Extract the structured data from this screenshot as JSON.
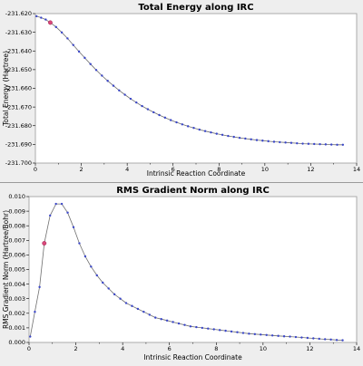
{
  "colors": {
    "plot_bg": "#ffffff",
    "line": "#6f6f6f",
    "marker": "#3a46c8",
    "current_marker": "#d9487a",
    "panel_bg": "#eeeeee"
  },
  "chart_data": [
    {
      "type": "line",
      "title": "Total Energy along IRC",
      "xlabel": "Intrinsic Reaction Coordinate",
      "ylabel": "Total Energy (Hartree)",
      "xlim": [
        0,
        14
      ],
      "ylim": [
        -231.7,
        -231.62
      ],
      "xticks": [
        "0",
        "2",
        "4",
        "6",
        "8",
        "10",
        "12",
        "14"
      ],
      "yticks": [
        "-231.620",
        "-231.630",
        "-231.640",
        "-231.650",
        "-231.660",
        "-231.670",
        "-231.680",
        "-231.690",
        "-231.700"
      ],
      "grid": false,
      "legend": "none",
      "highlight_index": 3,
      "x": [
        0.05,
        0.25,
        0.45,
        0.65,
        0.9,
        1.15,
        1.4,
        1.65,
        1.9,
        2.15,
        2.4,
        2.65,
        2.9,
        3.15,
        3.4,
        3.65,
        3.9,
        4.15,
        4.4,
        4.65,
        4.9,
        5.15,
        5.4,
        5.65,
        5.9,
        6.15,
        6.4,
        6.65,
        6.9,
        7.15,
        7.4,
        7.65,
        7.9,
        8.15,
        8.4,
        8.65,
        8.9,
        9.15,
        9.4,
        9.65,
        9.9,
        10.15,
        10.4,
        10.65,
        10.9,
        11.15,
        11.4,
        11.65,
        11.9,
        12.15,
        12.4,
        12.65,
        12.9,
        13.15,
        13.4
      ],
      "y": [
        -231.6214,
        -231.6222,
        -231.6232,
        -231.6248,
        -231.6272,
        -231.6301,
        -231.6333,
        -231.6368,
        -231.6403,
        -231.6437,
        -231.647,
        -231.6502,
        -231.6532,
        -231.656,
        -231.6586,
        -231.6611,
        -231.6634,
        -231.6656,
        -231.6676,
        -231.6695,
        -231.6712,
        -231.6728,
        -231.6743,
        -231.6757,
        -231.677,
        -231.6782,
        -231.6793,
        -231.6803,
        -231.6812,
        -231.6821,
        -231.6829,
        -231.6836,
        -231.6843,
        -231.6849,
        -231.6855,
        -231.686,
        -231.6865,
        -231.6869,
        -231.6873,
        -231.6877,
        -231.688,
        -231.6883,
        -231.6886,
        -231.6888,
        -231.689,
        -231.6892,
        -231.6894,
        -231.6896,
        -231.6897,
        -231.6898,
        -231.6899,
        -231.69,
        -231.6901,
        -231.6902,
        -231.6902
      ]
    },
    {
      "type": "line",
      "title": "RMS Gradient Norm along IRC",
      "xlabel": "Intrinsic Reaction Coordinate",
      "ylabel": "RMS Gradient Norm (Hartree/Bohr)",
      "xlim": [
        0,
        14
      ],
      "ylim": [
        0,
        0.01
      ],
      "xticks": [
        "0",
        "2",
        "4",
        "6",
        "8",
        "10",
        "12",
        "14"
      ],
      "yticks": [
        "0.000",
        "0.001",
        "0.002",
        "0.003",
        "0.004",
        "0.005",
        "0.006",
        "0.007",
        "0.008",
        "0.009",
        "0.010"
      ],
      "grid": false,
      "legend": "none",
      "highlight_index": 3,
      "x": [
        0.05,
        0.25,
        0.45,
        0.65,
        0.9,
        1.15,
        1.4,
        1.65,
        1.9,
        2.15,
        2.4,
        2.65,
        2.9,
        3.15,
        3.4,
        3.65,
        3.9,
        4.15,
        4.4,
        4.65,
        4.9,
        5.15,
        5.4,
        5.65,
        5.9,
        6.15,
        6.4,
        6.65,
        6.9,
        7.15,
        7.4,
        7.65,
        7.9,
        8.15,
        8.4,
        8.65,
        8.9,
        9.15,
        9.4,
        9.65,
        9.9,
        10.15,
        10.4,
        10.65,
        10.9,
        11.15,
        11.4,
        11.65,
        11.9,
        12.15,
        12.4,
        12.65,
        12.9,
        13.15,
        13.4
      ],
      "y": [
        0.0004,
        0.0021,
        0.0038,
        0.0068,
        0.0087,
        0.0095,
        0.0095,
        0.0089,
        0.0079,
        0.0068,
        0.0059,
        0.0052,
        0.0046,
        0.0041,
        0.0037,
        0.0033,
        0.003,
        0.0027,
        0.0025,
        0.0023,
        0.0021,
        0.0019,
        0.0017,
        0.0016,
        0.0015,
        0.0014,
        0.0013,
        0.0012,
        0.0011,
        0.00105,
        0.001,
        0.00095,
        0.0009,
        0.00085,
        0.0008,
        0.00075,
        0.0007,
        0.00065,
        0.0006,
        0.00057,
        0.00054,
        0.00051,
        0.00048,
        0.00045,
        0.00042,
        0.0004,
        0.00037,
        0.00034,
        0.00031,
        0.00028,
        0.00025,
        0.00022,
        0.0002,
        0.00017,
        0.00015
      ]
    }
  ]
}
